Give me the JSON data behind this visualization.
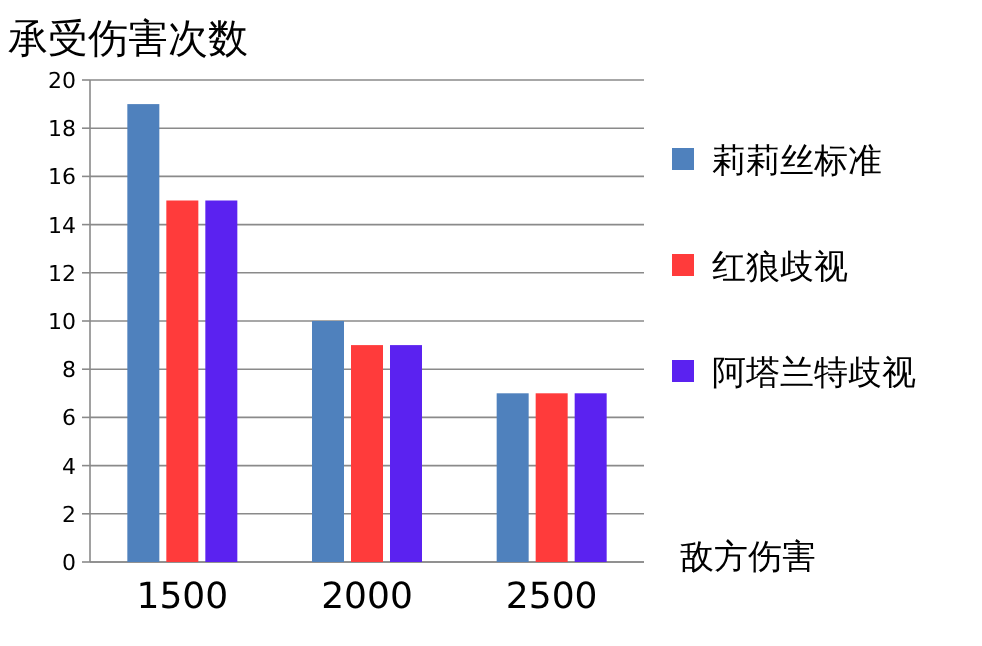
{
  "chart_data": {
    "type": "bar",
    "ylabel": "承受伤害次数",
    "xlabel": "敌方伤害",
    "categories": [
      "1500",
      "2000",
      "2500"
    ],
    "series": [
      {
        "name": "莉莉丝标准",
        "color": "#4f81bd",
        "values": [
          19,
          10,
          7
        ]
      },
      {
        "name": "红狼歧视",
        "color": "#ff3b3b",
        "values": [
          15,
          9,
          7
        ]
      },
      {
        "name": "阿塔兰特歧视",
        "color": "#5b22f0",
        "values": [
          15,
          9,
          7
        ]
      }
    ],
    "ylim": [
      0,
      20
    ],
    "yticks": [
      0,
      2,
      4,
      6,
      8,
      10,
      12,
      14,
      16,
      18,
      20
    ],
    "grid": "y",
    "legend": "right"
  }
}
